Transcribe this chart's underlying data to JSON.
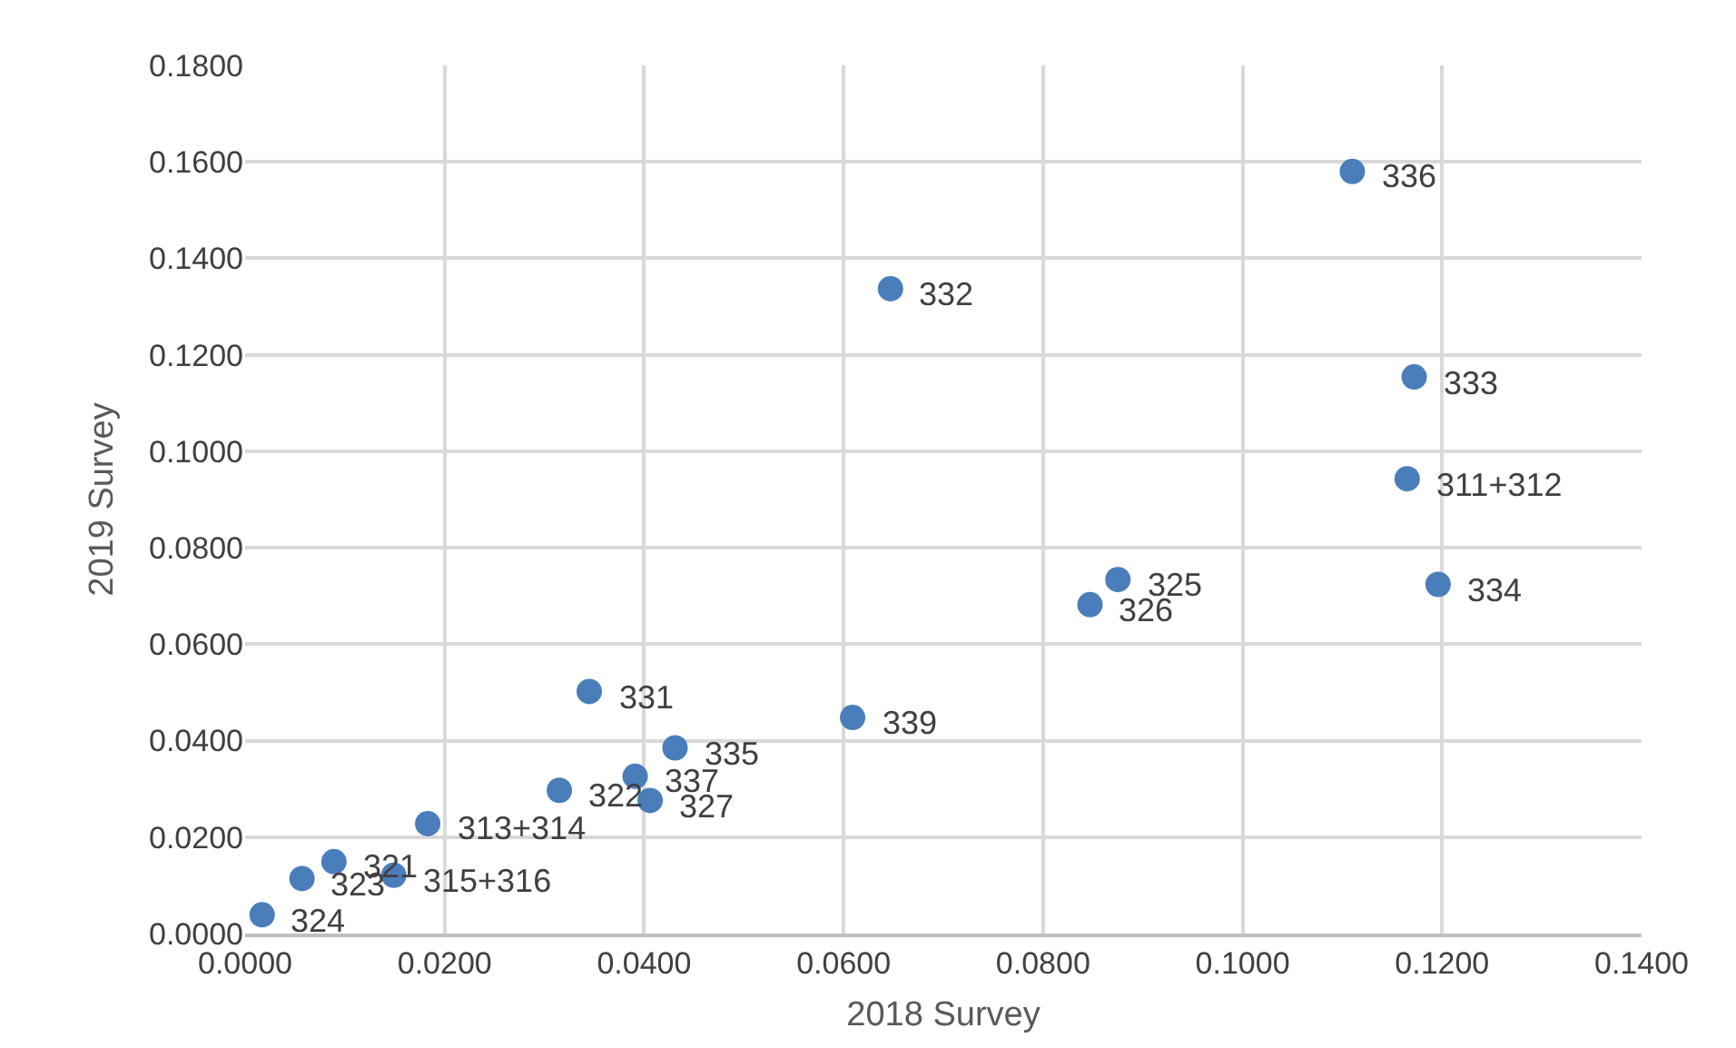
{
  "chart_data": {
    "type": "scatter",
    "xlabel": "2018 Survey",
    "ylabel": "2019 Survey",
    "marker": "circle",
    "grid": true,
    "series": [
      {
        "color": "#4a7ebb",
        "x": [
          0.111,
          0.0647,
          0.1172,
          0.1165,
          0.1196,
          0.0875,
          0.0847,
          0.0609,
          0.0345,
          0.0431,
          0.0391,
          0.0406,
          0.0315,
          0.0183,
          0.0089,
          0.0057,
          0.0149,
          0.0017
        ],
        "values": [
          0.158,
          0.1337,
          0.1154,
          0.0943,
          0.0724,
          0.0734,
          0.0682,
          0.0448,
          0.0502,
          0.0385,
          0.0326,
          0.0276,
          0.0297,
          0.0228,
          0.0149,
          0.0114,
          0.0121,
          0.0039
        ]
      }
    ],
    "annotations": [
      {
        "text": "336",
        "x": 0.111,
        "y": 0.158
      },
      {
        "text": "332",
        "x": 0.0647,
        "y": 0.1337
      },
      {
        "text": "333",
        "x": 0.1172,
        "y": 0.1154
      },
      {
        "text": "311+312",
        "x": 0.1165,
        "y": 0.0943
      },
      {
        "text": "334",
        "x": 0.1196,
        "y": 0.0724
      },
      {
        "text": "325",
        "x": 0.0875,
        "y": 0.0734
      },
      {
        "text": "326",
        "x": 0.0847,
        "y": 0.0682
      },
      {
        "text": "339",
        "x": 0.0609,
        "y": 0.0448
      },
      {
        "text": "331",
        "x": 0.0345,
        "y": 0.0502
      },
      {
        "text": "335",
        "x": 0.0431,
        "y": 0.0385
      },
      {
        "text": "337",
        "x": 0.0391,
        "y": 0.0326
      },
      {
        "text": "327",
        "x": 0.0406,
        "y": 0.0276
      },
      {
        "text": "322",
        "x": 0.0315,
        "y": 0.0297
      },
      {
        "text": "313+314",
        "x": 0.0183,
        "y": 0.0228
      },
      {
        "text": "321",
        "x": 0.0089,
        "y": 0.0149
      },
      {
        "text": "323",
        "x": 0.0057,
        "y": 0.0114
      },
      {
        "text": "315+316",
        "x": 0.0149,
        "y": 0.0121
      },
      {
        "text": "324",
        "x": 0.0017,
        "y": 0.0039
      }
    ],
    "xlim": [
      0,
      0.14
    ],
    "xticks": [
      {
        "value": 0,
        "label": "0.0000"
      },
      {
        "value": 0.02,
        "label": "0.0200"
      },
      {
        "value": 0.04,
        "label": "0.0400"
      },
      {
        "value": 0.06,
        "label": "0.0600"
      },
      {
        "value": 0.08,
        "label": "0.0800"
      },
      {
        "value": 0.1,
        "label": "0.1000"
      },
      {
        "value": 0.12,
        "label": "0.1200"
      },
      {
        "value": 0.14,
        "label": "0.1400"
      }
    ],
    "ylim": [
      0,
      0.18
    ],
    "yticks": [
      {
        "value": 0,
        "label": "0.0000"
      },
      {
        "value": 0.02,
        "label": "0.0200"
      },
      {
        "value": 0.04,
        "label": "0.0400"
      },
      {
        "value": 0.06,
        "label": "0.0600"
      },
      {
        "value": 0.08,
        "label": "0.0800"
      },
      {
        "value": 0.1,
        "label": "0.1000"
      },
      {
        "value": 0.12,
        "label": "0.1200"
      },
      {
        "value": 0.14,
        "label": "0.1400"
      },
      {
        "value": 0.16,
        "label": "0.1600"
      },
      {
        "value": 0.18,
        "label": "0.1800"
      }
    ]
  }
}
